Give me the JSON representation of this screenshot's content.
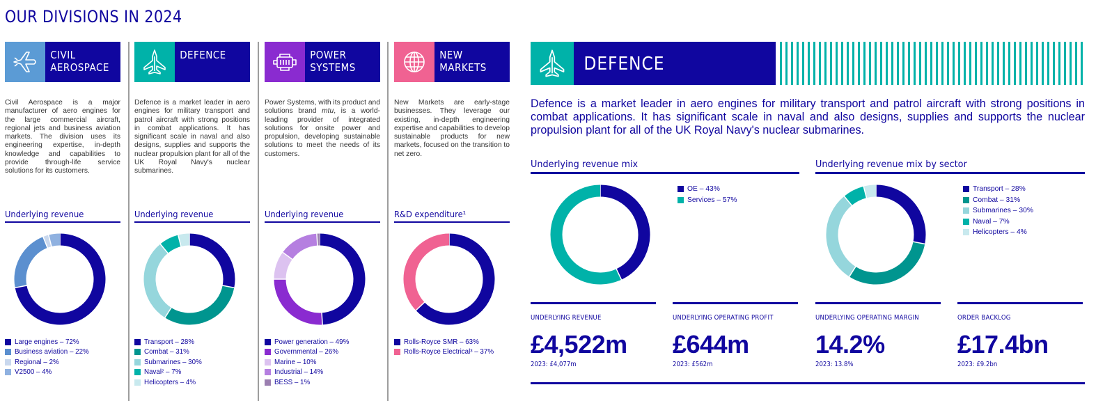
{
  "page": {
    "title": "OUR DIVISIONS IN 2024"
  },
  "colors": {
    "navy": "#10069f",
    "teal": "#00b2a9"
  },
  "divisions": [
    {
      "name": "CIVIL\nAEROSPACE",
      "icon": "airplane-icon",
      "icon_bg": "#5b9bd5",
      "description": "Civil Aerospace is a major manufacturer of aero engines for the large commercial aircraft, regional jets and business aviation markets. The division uses its engineering expertise, in-depth knowledge and capabilities to provide through-life service solutions for its customers.",
      "subtitle": "Underlying revenue",
      "legend": [
        {
          "label": "Large engines – 72%",
          "color": "#10069f"
        },
        {
          "label": "Business aviation – 22%",
          "color": "#5b8fcf"
        },
        {
          "label": "Regional – 2%",
          "color": "#c9d8ee"
        },
        {
          "label": "V2500 – 4%",
          "color": "#8fb1e0"
        }
      ]
    },
    {
      "name": "DEFENCE",
      "icon": "jet-fighter-icon",
      "icon_bg": "#00b2a9",
      "description": "Defence is a market leader in aero engines for military transport and patrol aircraft with strong positions in combat applications. It has significant scale in naval and also designs, supplies and supports the nuclear propulsion plant for all of the UK Royal Navy's nuclear submarines.",
      "subtitle": "Underlying revenue",
      "legend": [
        {
          "label": "Transport – 28%",
          "color": "#10069f"
        },
        {
          "label": "Combat – 31%",
          "color": "#00958f"
        },
        {
          "label": "Submarines – 30%",
          "color": "#95d6dc"
        },
        {
          "label": "Naval² – 7%",
          "color": "#00b2a9"
        },
        {
          "label": "Helicopters – 4%",
          "color": "#c8e9ee"
        }
      ]
    },
    {
      "name": "POWER\nSYSTEMS",
      "icon": "engine-icon",
      "icon_bg": "#8a2bd0",
      "description_pre": "Power Systems, with its product and solutions brand ",
      "description_brand": "mtu",
      "description_post": ", is a world-leading provider of integrated solutions for onsite power and propulsion, developing sustainable solutions to meet the needs of its customers.",
      "subtitle": "Underlying revenue",
      "legend": [
        {
          "label": "Power generation – 49%",
          "color": "#10069f"
        },
        {
          "label": "Governmental – 26%",
          "color": "#8a2bd0"
        },
        {
          "label": "Marine – 10%",
          "color": "#dcc2f0"
        },
        {
          "label": "Industrial – 14%",
          "color": "#b57fe0"
        },
        {
          "label": "BESS – 1%",
          "color": "#9b7fb0"
        }
      ]
    },
    {
      "name": "NEW\nMARKETS",
      "icon": "globe-icon",
      "icon_bg": "#f06292",
      "description": "New Markets are early-stage businesses. They leverage our existing, in-depth engineering expertise and capabilities to develop sustainable products for new markets, focused on the transition to net zero.",
      "subtitle": "R&D expenditure¹",
      "legend": [
        {
          "label": "Rolls-Royce SMR – 63%",
          "color": "#10069f"
        },
        {
          "label": "Rolls-Royce Electrical³ – 37%",
          "color": "#f06292"
        }
      ]
    }
  ],
  "defence_panel": {
    "title": "DEFENCE",
    "intro": "Defence is a market leader in aero engines for military transport and patrol aircraft with strong positions in combat applications. It has significant scale in naval and also designs, supplies and supports the nuclear propulsion plant for all of the UK Royal Navy's nuclear submarines.",
    "mix_title": "Underlying revenue mix",
    "mix_legend": [
      {
        "label": "OE – 43%",
        "color": "#10069f"
      },
      {
        "label": "Services – 57%",
        "color": "#00b2a9"
      }
    ],
    "sector_title": "Underlying revenue mix by sector",
    "sector_legend": [
      {
        "label": "Transport – 28%",
        "color": "#10069f"
      },
      {
        "label": "Combat – 31%",
        "color": "#00958f"
      },
      {
        "label": "Submarines – 30%",
        "color": "#95d6dc"
      },
      {
        "label": "Naval – 7%",
        "color": "#00b2a9"
      },
      {
        "label": "Helicopters – 4%",
        "color": "#c8e9ee"
      }
    ],
    "kpis": [
      {
        "label": "UNDERLYING REVENUE",
        "value": "£4,522m",
        "prev": "2023: £4,077m"
      },
      {
        "label": "UNDERLYING OPERATING PROFIT",
        "value": "£644m",
        "prev": "2023: £562m"
      },
      {
        "label": "UNDERLYING OPERATING MARGIN",
        "value": "14.2%",
        "prev": "2023: 13.8%"
      },
      {
        "label": "ORDER BACKLOG",
        "value": "£17.4bn",
        "prev": "2023: £9.2bn"
      }
    ]
  },
  "chart_data": [
    {
      "type": "pie",
      "categories": [
        "Large engines",
        "Business aviation",
        "Regional",
        "V2500"
      ],
      "values": [
        72,
        22,
        2,
        4
      ],
      "colors": [
        "#10069f",
        "#5b8fcf",
        "#c9d8ee",
        "#8fb1e0"
      ],
      "title": "Underlying revenue"
    },
    {
      "type": "pie",
      "categories": [
        "Transport",
        "Combat",
        "Submarines",
        "Naval²",
        "Helicopters"
      ],
      "values": [
        28,
        31,
        30,
        7,
        4
      ],
      "colors": [
        "#10069f",
        "#00958f",
        "#95d6dc",
        "#00b2a9",
        "#c8e9ee"
      ],
      "title": "Underlying revenue"
    },
    {
      "type": "pie",
      "categories": [
        "Power generation",
        "Governmental",
        "Marine",
        "Industrial",
        "BESS"
      ],
      "values": [
        49,
        26,
        10,
        14,
        1
      ],
      "colors": [
        "#10069f",
        "#8a2bd0",
        "#dcc2f0",
        "#b57fe0",
        "#9b7fb0"
      ],
      "title": "Underlying revenue"
    },
    {
      "type": "pie",
      "categories": [
        "Rolls-Royce SMR",
        "Rolls-Royce Electrical³"
      ],
      "values": [
        63,
        37
      ],
      "colors": [
        "#10069f",
        "#f06292"
      ],
      "title": "R&D expenditure¹"
    },
    {
      "type": "pie",
      "categories": [
        "OE",
        "Services"
      ],
      "values": [
        43,
        57
      ],
      "colors": [
        "#10069f",
        "#00b2a9"
      ],
      "title": "Underlying revenue mix"
    },
    {
      "type": "pie",
      "categories": [
        "Transport",
        "Combat",
        "Submarines",
        "Naval",
        "Helicopters"
      ],
      "values": [
        28,
        31,
        30,
        7,
        4
      ],
      "colors": [
        "#10069f",
        "#00958f",
        "#95d6dc",
        "#00b2a9",
        "#c8e9ee"
      ],
      "title": "Underlying revenue mix by sector"
    }
  ]
}
